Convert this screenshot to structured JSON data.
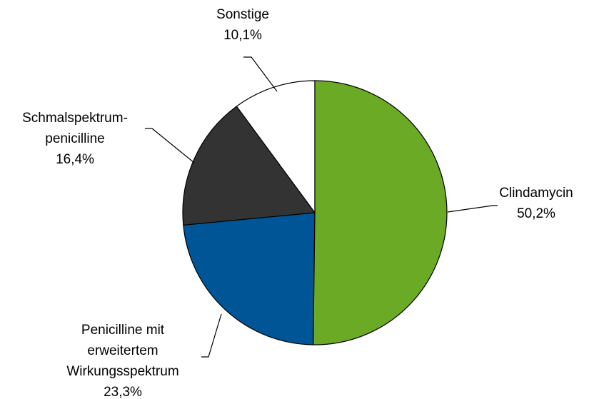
{
  "chart_data": {
    "type": "pie",
    "categories": [
      "Clindamycin",
      "Penicilline mit\nerweitertem\nWirkungsspektrum",
      "Schmalspektrum-\npenicilline",
      "Sonstige"
    ],
    "values": [
      50.2,
      23.3,
      16.4,
      10.1
    ],
    "value_labels": [
      "50,2%",
      "23,3%",
      "16,4%",
      "10,1%"
    ],
    "colors": [
      "#6aaa25",
      "#005596",
      "#333333",
      "#ffffff"
    ]
  }
}
